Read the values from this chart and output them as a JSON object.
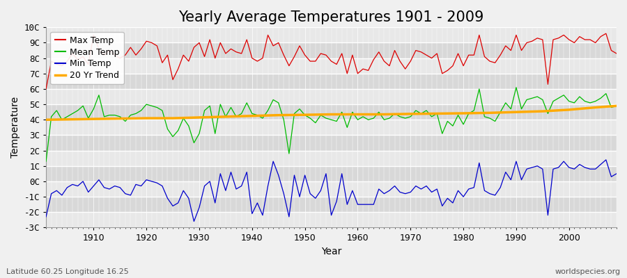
{
  "title": "Yearly Average Temperatures 1901 - 2009",
  "xlabel": "Year",
  "ylabel": "Temperature",
  "subtitle_left": "Latitude 60.25 Longitude 16.25",
  "subtitle_right": "worldspecies.org",
  "years": [
    1901,
    1902,
    1903,
    1904,
    1905,
    1906,
    1907,
    1908,
    1909,
    1910,
    1911,
    1912,
    1913,
    1914,
    1915,
    1916,
    1917,
    1918,
    1919,
    1920,
    1921,
    1922,
    1923,
    1924,
    1925,
    1926,
    1927,
    1928,
    1929,
    1930,
    1931,
    1932,
    1933,
    1934,
    1935,
    1936,
    1937,
    1938,
    1939,
    1940,
    1941,
    1942,
    1943,
    1944,
    1945,
    1946,
    1947,
    1948,
    1949,
    1950,
    1951,
    1952,
    1953,
    1954,
    1955,
    1956,
    1957,
    1958,
    1959,
    1960,
    1961,
    1962,
    1963,
    1964,
    1965,
    1966,
    1967,
    1968,
    1969,
    1970,
    1971,
    1972,
    1973,
    1974,
    1975,
    1976,
    1977,
    1978,
    1979,
    1980,
    1981,
    1982,
    1983,
    1984,
    1985,
    1986,
    1987,
    1988,
    1989,
    1990,
    1991,
    1992,
    1993,
    1994,
    1995,
    1996,
    1997,
    1998,
    1999,
    2000,
    2001,
    2002,
    2003,
    2004,
    2005,
    2006,
    2007,
    2008,
    2009
  ],
  "max_temp": [
    6.0,
    7.8,
    7.6,
    7.5,
    7.8,
    8.3,
    7.9,
    8.1,
    7.6,
    9.5,
    8.6,
    8.2,
    8.5,
    8.2,
    8.0,
    8.2,
    8.7,
    8.2,
    8.6,
    9.1,
    9.0,
    8.8,
    7.7,
    8.2,
    6.6,
    7.3,
    8.2,
    7.8,
    8.7,
    9.0,
    8.1,
    9.2,
    8.0,
    9.0,
    8.3,
    8.6,
    8.4,
    8.3,
    9.2,
    8.0,
    7.8,
    8.0,
    9.5,
    8.8,
    9.0,
    8.2,
    7.5,
    8.1,
    8.8,
    8.2,
    7.8,
    7.8,
    8.3,
    8.2,
    7.8,
    7.6,
    8.3,
    7.0,
    8.2,
    7.0,
    7.3,
    7.2,
    7.9,
    8.4,
    7.8,
    7.5,
    8.5,
    7.8,
    7.3,
    7.8,
    8.5,
    8.4,
    8.2,
    8.0,
    8.3,
    7.0,
    7.2,
    7.5,
    8.3,
    7.5,
    8.2,
    8.2,
    9.5,
    8.1,
    7.8,
    7.7,
    8.2,
    8.8,
    8.5,
    9.5,
    8.5,
    9.0,
    9.1,
    9.3,
    9.2,
    6.3,
    9.2,
    9.3,
    9.5,
    9.2,
    9.0,
    9.4,
    9.2,
    9.2,
    9.0,
    9.4,
    9.6,
    8.5,
    8.3
  ],
  "mean_temp": [
    1.3,
    4.2,
    4.6,
    4.0,
    4.2,
    4.4,
    4.6,
    4.9,
    4.1,
    4.7,
    5.6,
    4.2,
    4.3,
    4.3,
    4.2,
    3.9,
    4.3,
    4.4,
    4.6,
    5.0,
    4.9,
    4.8,
    4.6,
    3.4,
    2.9,
    3.3,
    4.1,
    3.6,
    2.5,
    3.1,
    4.6,
    4.9,
    3.1,
    5.0,
    4.2,
    4.8,
    4.2,
    4.4,
    5.1,
    4.4,
    4.3,
    4.1,
    4.6,
    5.3,
    5.1,
    4.0,
    1.8,
    4.4,
    4.7,
    4.3,
    4.1,
    3.8,
    4.3,
    4.1,
    4.0,
    3.9,
    4.5,
    3.5,
    4.5,
    4.0,
    4.2,
    4.0,
    4.1,
    4.5,
    4.0,
    4.1,
    4.4,
    4.2,
    4.1,
    4.2,
    4.6,
    4.4,
    4.6,
    4.2,
    4.4,
    3.1,
    3.9,
    3.6,
    4.3,
    3.7,
    4.4,
    4.6,
    6.0,
    4.2,
    4.1,
    3.9,
    4.5,
    5.1,
    4.7,
    6.1,
    4.7,
    5.3,
    5.4,
    5.5,
    5.3,
    4.4,
    5.2,
    5.4,
    5.6,
    5.2,
    5.1,
    5.5,
    5.2,
    5.1,
    5.2,
    5.4,
    5.7,
    4.8,
    4.9
  ],
  "min_temp": [
    -2.3,
    -0.8,
    -0.6,
    -0.9,
    -0.4,
    -0.2,
    -0.3,
    0.0,
    -0.7,
    -0.3,
    0.1,
    -0.4,
    -0.5,
    -0.3,
    -0.4,
    -0.8,
    -0.9,
    -0.2,
    -0.3,
    0.1,
    0.0,
    -0.1,
    -0.3,
    -1.1,
    -1.6,
    -1.4,
    -0.6,
    -1.1,
    -2.6,
    -1.7,
    -0.3,
    0.0,
    -1.4,
    0.5,
    -0.6,
    0.6,
    -0.5,
    -0.3,
    0.6,
    -2.1,
    -1.4,
    -2.2,
    -0.3,
    1.3,
    0.4,
    -0.8,
    -2.3,
    0.4,
    -1.0,
    0.4,
    -0.8,
    -1.1,
    -0.6,
    0.5,
    -2.2,
    -1.3,
    0.5,
    -1.5,
    -0.6,
    -1.5,
    -1.5,
    -1.5,
    -1.5,
    -0.5,
    -0.8,
    -0.6,
    -0.3,
    -0.7,
    -0.8,
    -0.7,
    -0.3,
    -0.5,
    -0.3,
    -0.7,
    -0.5,
    -1.6,
    -1.1,
    -1.4,
    -0.6,
    -1.0,
    -0.5,
    -0.4,
    1.2,
    -0.6,
    -0.8,
    -0.9,
    -0.4,
    0.6,
    0.1,
    1.3,
    0.1,
    0.8,
    0.9,
    1.0,
    0.8,
    -2.2,
    0.8,
    0.9,
    1.3,
    0.9,
    0.8,
    1.1,
    0.9,
    0.8,
    0.8,
    1.1,
    1.4,
    0.3,
    0.5
  ],
  "trend_years": [
    1901,
    1910,
    1920,
    1925,
    1930,
    1935,
    1940,
    1945,
    1950,
    1955,
    1960,
    1965,
    1970,
    1975,
    1980,
    1985,
    1990,
    1995,
    2000,
    2005,
    2009
  ],
  "trend_vals": [
    4.0,
    4.05,
    4.1,
    4.1,
    4.15,
    4.2,
    4.25,
    4.3,
    4.32,
    4.35,
    4.35,
    4.35,
    4.38,
    4.4,
    4.42,
    4.45,
    4.5,
    4.55,
    4.65,
    4.8,
    4.9
  ],
  "max_color": "#dd0000",
  "mean_color": "#00bb00",
  "min_color": "#0000cc",
  "trend_color": "#ffaa00",
  "bg_color": "#f0f0f0",
  "plot_bg_light": "#e8e8e8",
  "plot_bg_dark": "#d8d8d8",
  "grid_color": "#ffffff",
  "ylim": [
    -3,
    10
  ],
  "yticks": [
    -3,
    -2,
    -1,
    0,
    1,
    2,
    3,
    4,
    5,
    6,
    7,
    8,
    9,
    10
  ],
  "ytick_labels": [
    "-3C",
    "-2C",
    "-1C",
    "0C",
    "1C",
    "2C",
    "3C",
    "4C",
    "5C",
    "6C",
    "7C",
    "8C",
    "9C",
    "10C"
  ],
  "xlim": [
    1901,
    2009
  ],
  "title_fontsize": 15,
  "label_fontsize": 10,
  "tick_fontsize": 9,
  "legend_fontsize": 9
}
